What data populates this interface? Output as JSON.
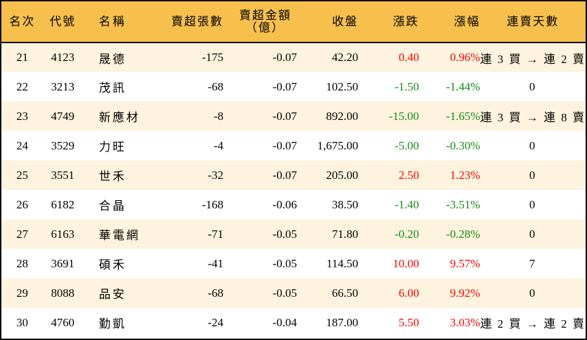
{
  "header": {
    "rank": "名次",
    "code": "代號",
    "name": "名稱",
    "net_sell_lots": "賣超張數",
    "net_sell_amount_line1": "賣超金額",
    "net_sell_amount_line2": "（億）",
    "close": "收盤",
    "change": "漲跌",
    "change_pct": "漲幅",
    "streak": "連賣天數"
  },
  "colors": {
    "header_bg": "#f7c04d",
    "row_alt_bg": "#fdf3de",
    "up": "#ff0000",
    "down": "#138a13"
  },
  "rows": [
    {
      "rank": "21",
      "code": "4123",
      "name": "晟德",
      "lots": "-175",
      "amount": "-0.07",
      "close": "42.20",
      "change": "0.40",
      "pct": "0.96%",
      "dir": "up",
      "streak": "連 3 買 → 連 2 賣"
    },
    {
      "rank": "22",
      "code": "3213",
      "name": "茂訊",
      "lots": "-68",
      "amount": "-0.07",
      "close": "102.50",
      "change": "-1.50",
      "pct": "-1.44%",
      "dir": "down",
      "streak": "0"
    },
    {
      "rank": "23",
      "code": "4749",
      "name": "新應材",
      "lots": "-8",
      "amount": "-0.07",
      "close": "892.00",
      "change": "-15.00",
      "pct": "-1.65%",
      "dir": "down",
      "streak": "連 3 買 → 連 8 賣"
    },
    {
      "rank": "24",
      "code": "3529",
      "name": "力旺",
      "lots": "-4",
      "amount": "-0.07",
      "close": "1,675.00",
      "change": "-5.00",
      "pct": "-0.30%",
      "dir": "down",
      "streak": "0"
    },
    {
      "rank": "25",
      "code": "3551",
      "name": "世禾",
      "lots": "-32",
      "amount": "-0.07",
      "close": "205.00",
      "change": "2.50",
      "pct": "1.23%",
      "dir": "up",
      "streak": "0"
    },
    {
      "rank": "26",
      "code": "6182",
      "name": "合晶",
      "lots": "-168",
      "amount": "-0.06",
      "close": "38.50",
      "change": "-1.40",
      "pct": "-3.51%",
      "dir": "down",
      "streak": "0"
    },
    {
      "rank": "27",
      "code": "6163",
      "name": "華電網",
      "lots": "-71",
      "amount": "-0.05",
      "close": "71.80",
      "change": "-0.20",
      "pct": "-0.28%",
      "dir": "down",
      "streak": "0"
    },
    {
      "rank": "28",
      "code": "3691",
      "name": "碩禾",
      "lots": "-41",
      "amount": "-0.05",
      "close": "114.50",
      "change": "10.00",
      "pct": "9.57%",
      "dir": "up",
      "streak": "7"
    },
    {
      "rank": "29",
      "code": "8088",
      "name": "品安",
      "lots": "-68",
      "amount": "-0.05",
      "close": "66.50",
      "change": "6.00",
      "pct": "9.92%",
      "dir": "up",
      "streak": "0"
    },
    {
      "rank": "30",
      "code": "4760",
      "name": "勤凱",
      "lots": "-24",
      "amount": "-0.04",
      "close": "187.00",
      "change": "5.50",
      "pct": "3.03%",
      "dir": "up",
      "streak": "連 2 買 → 連 2 賣"
    }
  ]
}
